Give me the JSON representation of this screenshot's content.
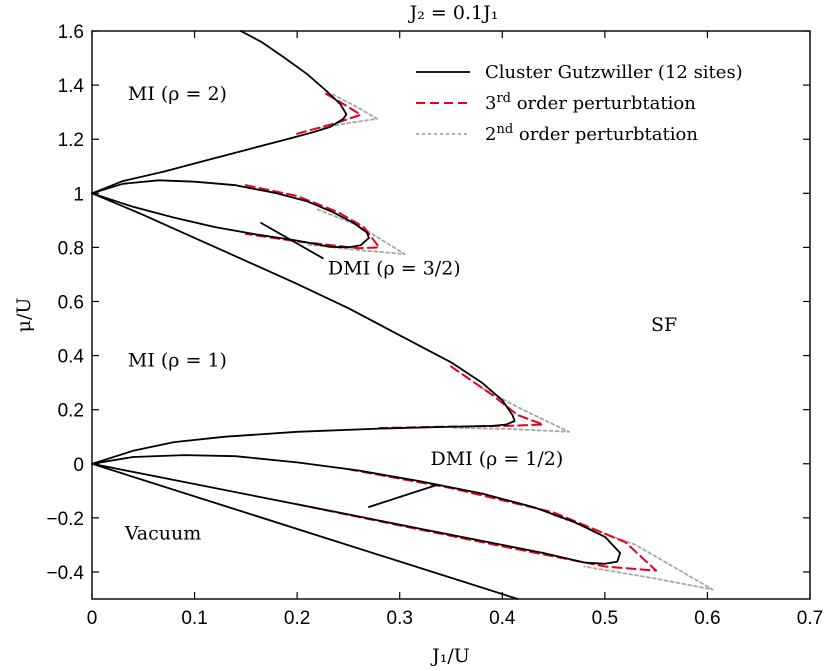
{
  "chart_data": {
    "type": "line",
    "title": "J₂ = 0.1J₁",
    "xlabel": "J₁/U",
    "ylabel": "μ/U",
    "xlim": [
      0,
      0.7
    ],
    "ylim": [
      -0.5,
      1.6
    ],
    "xticks": [
      0,
      0.1,
      0.2,
      0.3,
      0.4,
      0.5,
      0.6,
      0.7
    ],
    "yticks": [
      -0.4,
      -0.2,
      0,
      0.2,
      0.4,
      0.6,
      0.8,
      1,
      1.2,
      1.4,
      1.6
    ],
    "xtick_labels": [
      "0",
      "0.1",
      "0.2",
      "0.3",
      "0.4",
      "0.5",
      "0.6",
      "0.7"
    ],
    "ytick_labels": [
      "−0.4",
      "−0.2",
      "0",
      "0.2",
      "0.4",
      "0.6",
      "0.8",
      "1",
      "1.2",
      "1.4",
      "1.6"
    ],
    "grid": false,
    "legend_position": "top-right",
    "legend": [
      {
        "label": "Cluster Gutzwiller (12 sites)",
        "color": "#000000",
        "style": "solid",
        "series": "cluster"
      },
      {
        "label": "3rd order perturbtation",
        "base": "3",
        "sup": "rd",
        "rest": " order perturbtation",
        "color": "#e8001c",
        "style": "dashed",
        "series": "third"
      },
      {
        "label": "2nd order perturbtation",
        "base": "2",
        "sup": "nd",
        "rest": " order perturbtation",
        "color": "#a6a6a6",
        "style": "dotted",
        "series": "second"
      }
    ],
    "series": [
      {
        "name": "Cluster Gutzwiller (12 sites)",
        "key": "cluster",
        "color": "#000000",
        "curves": [
          {
            "id": "lobe-mi2",
            "points": [
              [
                0,
                1
              ],
              [
                0.03,
                1.045
              ],
              [
                0.07,
                1.08
              ],
              [
                0.11,
                1.12
              ],
              [
                0.15,
                1.16
              ],
              [
                0.19,
                1.2
              ],
              [
                0.215,
                1.225
              ],
              [
                0.232,
                1.245
              ],
              [
                0.245,
                1.275
              ],
              [
                0.248,
                1.292
              ],
              [
                0.242,
                1.33
              ],
              [
                0.228,
                1.38
              ],
              [
                0.21,
                1.44
              ],
              [
                0.188,
                1.5
              ],
              [
                0.165,
                1.56
              ],
              [
                0.145,
                1.6
              ]
            ]
          },
          {
            "id": "dmi32-upper",
            "points": [
              [
                0,
                1
              ],
              [
                0.03,
                1.035
              ],
              [
                0.065,
                1.048
              ],
              [
                0.1,
                1.043
              ],
              [
                0.14,
                1.03
              ],
              [
                0.18,
                1.0
              ],
              [
                0.21,
                0.97
              ],
              [
                0.235,
                0.93
              ],
              [
                0.255,
                0.89
              ],
              [
                0.268,
                0.855
              ],
              [
                0.27,
                0.835
              ],
              [
                0.262,
                0.808
              ],
              [
                0.25,
                0.8
              ],
              [
                0.232,
                0.802
              ]
            ]
          },
          {
            "id": "dmi32-lower",
            "points": [
              [
                0,
                1
              ],
              [
                0.04,
                0.95
              ],
              [
                0.08,
                0.91
              ],
              [
                0.12,
                0.875
              ],
              [
                0.16,
                0.848
              ],
              [
                0.2,
                0.825
              ],
              [
                0.232,
                0.802
              ]
            ]
          },
          {
            "id": "mi1-upper",
            "points": [
              [
                0,
                1
              ],
              [
                0.05,
                0.92
              ],
              [
                0.1,
                0.835
              ],
              [
                0.15,
                0.75
              ],
              [
                0.2,
                0.665
              ],
              [
                0.25,
                0.575
              ],
              [
                0.3,
                0.475
              ],
              [
                0.35,
                0.375
              ],
              [
                0.38,
                0.3
              ],
              [
                0.4,
                0.235
              ],
              [
                0.41,
                0.18
              ],
              [
                0.412,
                0.158
              ],
              [
                0.404,
                0.145
              ],
              [
                0.39,
                0.14
              ]
            ]
          },
          {
            "id": "mi1-lower",
            "points": [
              [
                0,
                0
              ],
              [
                0.04,
                0.048
              ],
              [
                0.08,
                0.08
              ],
              [
                0.13,
                0.1
              ],
              [
                0.2,
                0.118
              ],
              [
                0.28,
                0.13
              ],
              [
                0.34,
                0.136
              ],
              [
                0.39,
                0.14
              ]
            ]
          },
          {
            "id": "dmi12-upper",
            "points": [
              [
                0,
                0
              ],
              [
                0.04,
                0.025
              ],
              [
                0.09,
                0.032
              ],
              [
                0.14,
                0.028
              ],
              [
                0.2,
                0.005
              ],
              [
                0.26,
                -0.025
              ],
              [
                0.32,
                -0.065
              ],
              [
                0.38,
                -0.11
              ],
              [
                0.43,
                -0.16
              ],
              [
                0.47,
                -0.215
              ],
              [
                0.5,
                -0.27
              ],
              [
                0.515,
                -0.33
              ],
              [
                0.512,
                -0.362
              ],
              [
                0.5,
                -0.37
              ],
              [
                0.48,
                -0.365
              ]
            ]
          },
          {
            "id": "dmi12-lower",
            "points": [
              [
                0,
                0
              ],
              [
                0.08,
                -0.06
              ],
              [
                0.16,
                -0.12
              ],
              [
                0.24,
                -0.18
              ],
              [
                0.32,
                -0.24
              ],
              [
                0.4,
                -0.3
              ],
              [
                0.44,
                -0.33
              ],
              [
                0.48,
                -0.365
              ]
            ]
          },
          {
            "id": "vacuum-edge",
            "points": [
              [
                0,
                0
              ],
              [
                0.415,
                -0.5
              ]
            ]
          },
          {
            "id": "dmi32-pointer",
            "points": [
              [
                0.165,
                0.89
              ],
              [
                0.225,
                0.76
              ]
            ]
          },
          {
            "id": "dmi12-pointer",
            "points": [
              [
                0.27,
                -0.16
              ],
              [
                0.335,
                -0.08
              ]
            ]
          }
        ]
      },
      {
        "name": "3rd order perturbtation",
        "key": "third",
        "color": "#e8001c",
        "curves": [
          {
            "id": "mi2-tip",
            "points": [
              [
                0.2,
                1.22
              ],
              [
                0.24,
                1.262
              ],
              [
                0.262,
                1.29
              ],
              [
                0.245,
                1.33
              ],
              [
                0.225,
                1.375
              ]
            ]
          },
          {
            "id": "dmi32-tip",
            "points": [
              [
                0.15,
                1.03
              ],
              [
                0.2,
                0.99
              ],
              [
                0.24,
                0.93
              ],
              [
                0.265,
                0.875
              ],
              [
                0.28,
                0.8
              ],
              [
                0.26,
                0.797
              ],
              [
                0.2,
                0.822
              ],
              [
                0.15,
                0.85
              ]
            ]
          },
          {
            "id": "mi1-tip",
            "points": [
              [
                0.35,
                0.36
              ],
              [
                0.39,
                0.255
              ],
              [
                0.415,
                0.18
              ],
              [
                0.44,
                0.145
              ],
              [
                0.405,
                0.14
              ],
              [
                0.34,
                0.137
              ],
              [
                0.28,
                0.132
              ]
            ]
          },
          {
            "id": "dmi12-tip",
            "points": [
              [
                0.25,
                -0.02
              ],
              [
                0.35,
                -0.09
              ],
              [
                0.45,
                -0.18
              ],
              [
                0.52,
                -0.29
              ],
              [
                0.55,
                -0.395
              ],
              [
                0.5,
                -0.38
              ],
              [
                0.4,
                -0.305
              ],
              [
                0.3,
                -0.228
              ],
              [
                0.2,
                -0.15
              ]
            ]
          }
        ]
      },
      {
        "name": "2nd order perturbtation",
        "key": "second",
        "color": "#a6a6a6",
        "curves": [
          {
            "id": "mi2-tip",
            "points": [
              [
                0.22,
                1.24
              ],
              [
                0.25,
                1.26
              ],
              [
                0.278,
                1.275
              ],
              [
                0.258,
                1.32
              ],
              [
                0.235,
                1.365
              ]
            ]
          },
          {
            "id": "dmi32-tip",
            "points": [
              [
                0.22,
                0.94
              ],
              [
                0.26,
                0.88
              ],
              [
                0.305,
                0.775
              ],
              [
                0.26,
                0.79
              ],
              [
                0.21,
                0.81
              ]
            ]
          },
          {
            "id": "mi1-tip",
            "points": [
              [
                0.38,
                0.28
              ],
              [
                0.42,
                0.2
              ],
              [
                0.465,
                0.118
              ],
              [
                0.41,
                0.128
              ],
              [
                0.35,
                0.133
              ]
            ]
          },
          {
            "id": "dmi12-tip",
            "points": [
              [
                0.45,
                -0.19
              ],
              [
                0.53,
                -0.3
              ],
              [
                0.605,
                -0.465
              ],
              [
                0.55,
                -0.425
              ],
              [
                0.48,
                -0.38
              ]
            ]
          }
        ]
      }
    ],
    "annotations": [
      {
        "key": "mi2",
        "text": "MI (ρ = 2)",
        "x": 0.035,
        "y": 1.345
      },
      {
        "key": "dmi32",
        "text": "DMI (ρ = 3/2)",
        "x": 0.23,
        "y": 0.7
      },
      {
        "key": "mi1",
        "text": "MI (ρ = 1)",
        "x": 0.035,
        "y": 0.36
      },
      {
        "key": "sf",
        "text": "SF",
        "x": 0.545,
        "y": 0.49
      },
      {
        "key": "dmi12",
        "text": "DMI (ρ = 1/2)",
        "x": 0.33,
        "y": -0.005
      },
      {
        "key": "vacuum",
        "text": "Vacuum",
        "x": 0.032,
        "y": -0.28
      }
    ]
  }
}
